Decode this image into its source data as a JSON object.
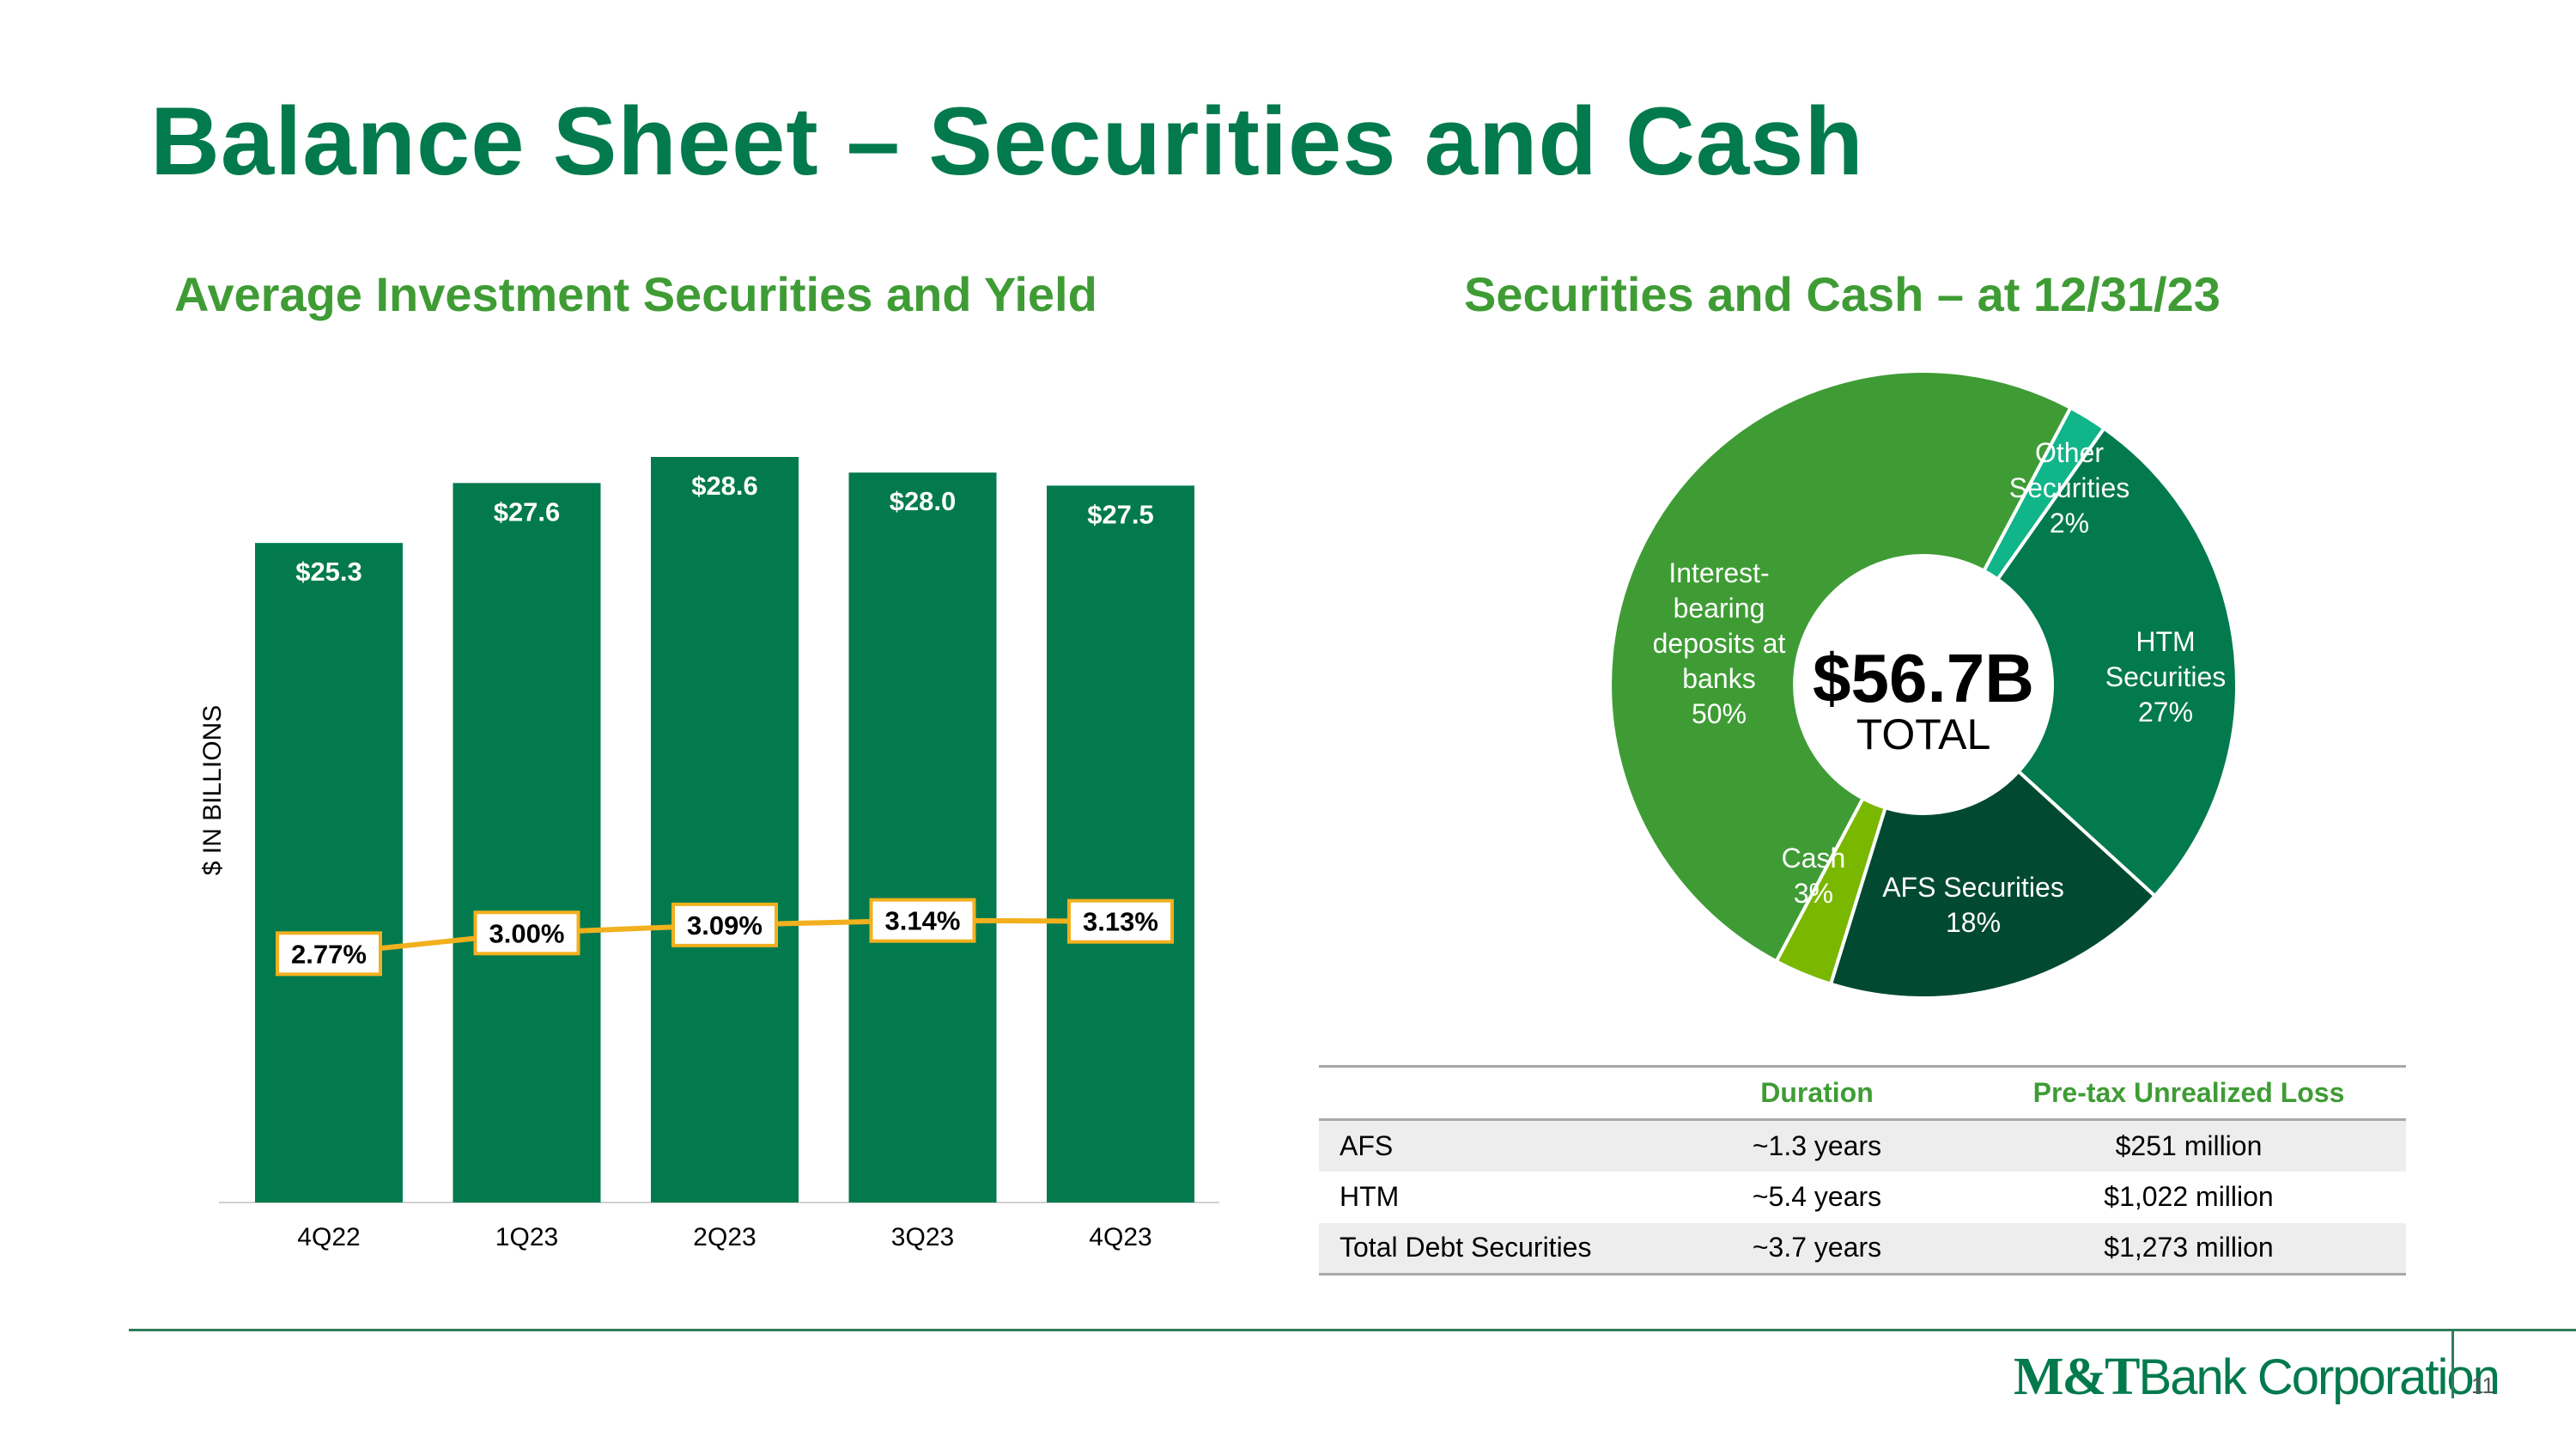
{
  "title": "Balance Sheet – Securities and Cash",
  "left_subtitle": "Average Investment Securities and Yield",
  "right_subtitle": "Securities and Cash – at 12/31/23",
  "chart_data": [
    {
      "type": "bar",
      "title": "Average Investment Securities and Yield",
      "ylabel": "$ IN BILLIONS",
      "categories": [
        "4Q22",
        "1Q23",
        "2Q23",
        "3Q23",
        "4Q23"
      ],
      "values": [
        25.3,
        27.6,
        28.6,
        28.0,
        27.5
      ],
      "value_labels": [
        "$25.3",
        "$27.6",
        "$28.6",
        "$28.0",
        "$27.5"
      ],
      "ylim": [
        0,
        28.6
      ],
      "bar_color": "#027a4e",
      "line_series": {
        "name": "Yield",
        "values": [
          2.77,
          3.0,
          3.09,
          3.14,
          3.13
        ],
        "labels": [
          "2.77%",
          "3.00%",
          "3.09%",
          "3.14%",
          "3.13%"
        ],
        "ylim": [
          0,
          8.3
        ],
        "color": "#f2b01e"
      }
    },
    {
      "type": "pie",
      "title": "Securities and Cash – at 12/31/23",
      "center_value": "$56.7B",
      "center_label": "TOTAL",
      "slices": [
        {
          "name": "Other Securities",
          "value": 2,
          "lines": [
            "Other",
            "Securities",
            "2%"
          ],
          "color": "#11b58a"
        },
        {
          "name": "HTM Securities",
          "value": 27,
          "lines": [
            "HTM",
            "Securities",
            "27%"
          ],
          "color": "#027a4e"
        },
        {
          "name": "AFS Securities",
          "value": 18,
          "lines": [
            "AFS Securities",
            "18%"
          ],
          "color": "#014a31"
        },
        {
          "name": "Cash",
          "value": 3,
          "lines": [
            "Cash",
            "3%"
          ],
          "color": "#7ab800"
        },
        {
          "name": "Interest-bearing deposits at banks",
          "value": 50,
          "lines": [
            "Interest-",
            "bearing",
            "deposits at",
            "banks",
            "50%"
          ],
          "color": "#3f9c35"
        }
      ]
    }
  ],
  "table": {
    "headers": [
      "",
      "Duration",
      "Pre-tax Unrealized Loss"
    ],
    "rows": [
      [
        "AFS",
        "~1.3 years",
        "$251 million"
      ],
      [
        "HTM",
        "~5.4 years",
        "$1,022 million"
      ],
      [
        "Total Debt Securities",
        "~3.7 years",
        "$1,273 million"
      ]
    ]
  },
  "footer": {
    "logo_bold": "M&T",
    "logo_light": "Bank Corporation",
    "page_number": "11"
  }
}
